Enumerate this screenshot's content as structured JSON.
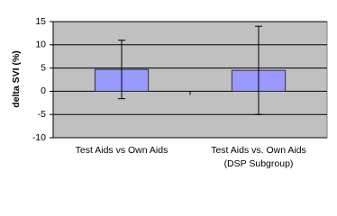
{
  "chart_data": {
    "type": "bar",
    "y_label": "delta SVI (%)",
    "categories": [
      "Test Aids vs Own Aids",
      "Test Aids vs. Own Aids\n(DSP Subgroup)"
    ],
    "series": [
      {
        "color": "#9999ff",
        "values": [
          4.7,
          4.5
        ],
        "errors": [
          6.3,
          9.5
        ]
      }
    ],
    "ylim": [
      -10,
      15
    ],
    "yticks": [
      -10,
      -5,
      0,
      5,
      10,
      15
    ],
    "grid": true
  }
}
